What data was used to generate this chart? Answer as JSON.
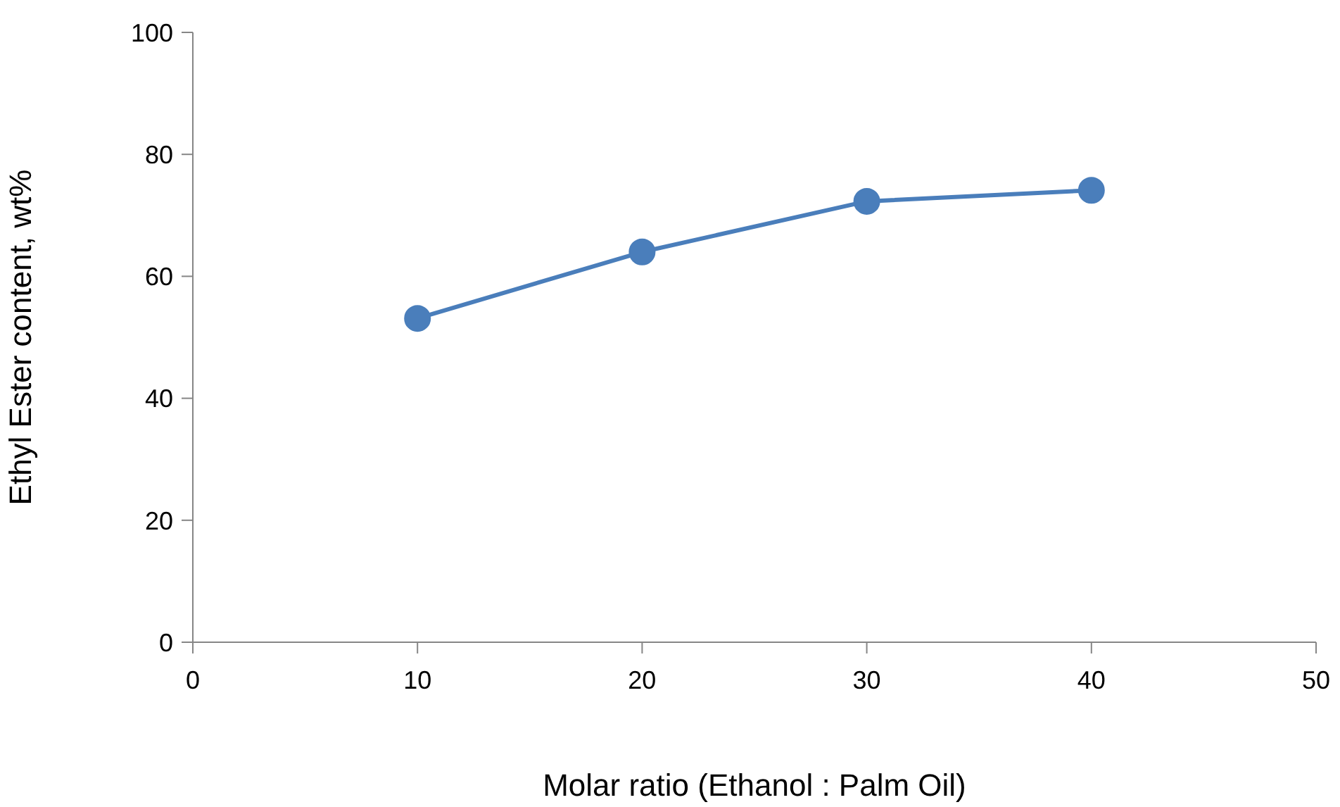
{
  "chart_data": {
    "type": "line",
    "xlabel": "Molar ratio (Ethanol : Palm Oil)",
    "ylabel": "Ethyl Ester content, wt%",
    "x": [
      10,
      20,
      30,
      40
    ],
    "series": [
      {
        "color": "#4a7ebb",
        "values": [
          53.1,
          64.0,
          72.3,
          74.1
        ]
      }
    ],
    "xlim": [
      0,
      50
    ],
    "xticks": [
      0,
      10,
      20,
      30,
      40,
      50
    ],
    "ylim": [
      0,
      100
    ],
    "yticks": [
      0,
      20,
      40,
      60,
      80,
      100
    ],
    "marker": "circle",
    "line_style": "solid"
  }
}
